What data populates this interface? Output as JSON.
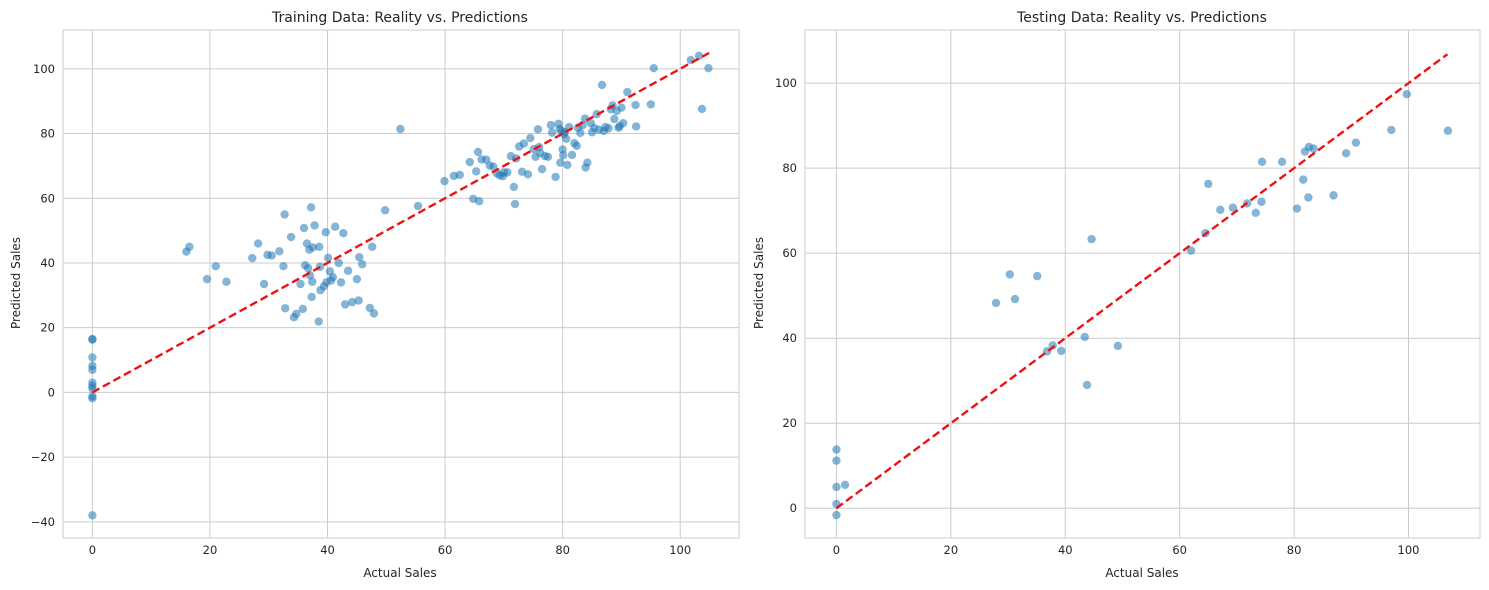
{
  "chart_data": [
    {
      "type": "scatter",
      "title": "Training Data: Reality vs. Predictions",
      "xlabel": "Actual Sales",
      "ylabel": "Predicted Sales",
      "xlim": [
        -5,
        110
      ],
      "ylim": [
        -45,
        112
      ],
      "xticks": [
        0,
        20,
        40,
        60,
        80,
        100
      ],
      "yticks": [
        -40,
        -20,
        0,
        20,
        40,
        60,
        80,
        100
      ],
      "grid": true,
      "point_color": "#1f77b4",
      "line_color": "#ee1111",
      "reference_line": {
        "x": [
          0,
          105
        ],
        "y": [
          0,
          105
        ]
      },
      "points": [
        [
          0,
          16.5
        ],
        [
          0,
          16.3
        ],
        [
          0,
          10.8
        ],
        [
          0,
          8.2
        ],
        [
          0,
          7.0
        ],
        [
          0,
          3.0
        ],
        [
          0,
          2.0
        ],
        [
          0,
          1.2
        ],
        [
          0,
          -1.2
        ],
        [
          0,
          -1.8
        ],
        [
          0,
          -38
        ],
        [
          16,
          43.5
        ],
        [
          16.5,
          45
        ],
        [
          19.5,
          35
        ],
        [
          21,
          39
        ],
        [
          22.8,
          34.2
        ],
        [
          27.2,
          41.5
        ],
        [
          28.2,
          46
        ],
        [
          29.2,
          33.5
        ],
        [
          29.8,
          42.5
        ],
        [
          30.5,
          42.3
        ],
        [
          31.8,
          43.6
        ],
        [
          32.5,
          39
        ],
        [
          32.7,
          55
        ],
        [
          32.8,
          26
        ],
        [
          33.8,
          48
        ],
        [
          34.3,
          23.2
        ],
        [
          34.7,
          24.3
        ],
        [
          35.4,
          33.5
        ],
        [
          35.8,
          25.8
        ],
        [
          36,
          50.8
        ],
        [
          36.2,
          39.3
        ],
        [
          36.5,
          46
        ],
        [
          36.7,
          38.4
        ],
        [
          36.9,
          44.1
        ],
        [
          37.0,
          36.2
        ],
        [
          37.2,
          57.2
        ],
        [
          37.3,
          29.5
        ],
        [
          37.4,
          34.2
        ],
        [
          37.5,
          44.8
        ],
        [
          37.8,
          51.6
        ],
        [
          38.5,
          21.9
        ],
        [
          38.6,
          45
        ],
        [
          38.7,
          38.8
        ],
        [
          38.8,
          31.6
        ],
        [
          39.4,
          32.8
        ],
        [
          39.7,
          49.5
        ],
        [
          39.8,
          34.0
        ],
        [
          40.1,
          41.6
        ],
        [
          40.4,
          37.4
        ],
        [
          40.6,
          34.6
        ],
        [
          40.9,
          35.6
        ],
        [
          41.3,
          51.2
        ],
        [
          41.9,
          40.0
        ],
        [
          42.3,
          34.0
        ],
        [
          42.7,
          49.2
        ],
        [
          43.0,
          27.2
        ],
        [
          43.5,
          37.6
        ],
        [
          44.2,
          27.9
        ],
        [
          45.0,
          35.0
        ],
        [
          45.3,
          28.4
        ],
        [
          45.4,
          41.8
        ],
        [
          45.9,
          39.6
        ],
        [
          47.2,
          26.1
        ],
        [
          47.6,
          45.0
        ],
        [
          47.9,
          24.4
        ],
        [
          49.8,
          56.3
        ],
        [
          52.4,
          81.4
        ],
        [
          55.4,
          57.6
        ],
        [
          59.9,
          65.3
        ],
        [
          61.5,
          66.9
        ],
        [
          62.5,
          67.2
        ],
        [
          64.2,
          71.2
        ],
        [
          64.8,
          59.8
        ],
        [
          65.3,
          68.3
        ],
        [
          65.6,
          74.3
        ],
        [
          65.8,
          59.1
        ],
        [
          66.2,
          72.0
        ],
        [
          67.0,
          71.9
        ],
        [
          67.6,
          70.1
        ],
        [
          68.2,
          69.8
        ],
        [
          68.8,
          67.7
        ],
        [
          69.3,
          67.1
        ],
        [
          69.8,
          66.8
        ],
        [
          70.0,
          68.0
        ],
        [
          70.6,
          68.0
        ],
        [
          71.2,
          73.0
        ],
        [
          71.7,
          63.5
        ],
        [
          71.9,
          58.2
        ],
        [
          72.1,
          72.3
        ],
        [
          72.6,
          76.0
        ],
        [
          73.1,
          68.2
        ],
        [
          73.4,
          76.9
        ],
        [
          74.1,
          67.4
        ],
        [
          74.5,
          78.6
        ],
        [
          75.1,
          75.2
        ],
        [
          75.4,
          72.8
        ],
        [
          75.8,
          81.3
        ],
        [
          76.0,
          75.8
        ],
        [
          76.2,
          74.0
        ],
        [
          76.5,
          69.0
        ],
        [
          77.0,
          73.0
        ],
        [
          77.5,
          72.8
        ],
        [
          78.0,
          82.6
        ],
        [
          78.2,
          80.3
        ],
        [
          78.8,
          66.6
        ],
        [
          79.3,
          83.0
        ],
        [
          79.5,
          81.4
        ],
        [
          79.6,
          71.0
        ],
        [
          79.8,
          80.8
        ],
        [
          80.0,
          75.1
        ],
        [
          80.1,
          73.3
        ],
        [
          80.2,
          79.8
        ],
        [
          80.4,
          80.5
        ],
        [
          80.6,
          78.4
        ],
        [
          80.8,
          70.3
        ],
        [
          81.1,
          82.0
        ],
        [
          81.6,
          73.4
        ],
        [
          82.0,
          77.0
        ],
        [
          82.4,
          76.2
        ],
        [
          82.6,
          81.8
        ],
        [
          83.0,
          80.2
        ],
        [
          83.4,
          82.6
        ],
        [
          83.8,
          84.6
        ],
        [
          83.9,
          69.5
        ],
        [
          84.2,
          71.0
        ],
        [
          84.8,
          83.2
        ],
        [
          85.0,
          80.4
        ],
        [
          85.4,
          81.7
        ],
        [
          85.8,
          86.0
        ],
        [
          86.2,
          81.2
        ],
        [
          86.7,
          95.0
        ],
        [
          87.0,
          80.8
        ],
        [
          87.3,
          82.0
        ],
        [
          87.8,
          81.6
        ],
        [
          88.2,
          87.5
        ],
        [
          88.5,
          88.7
        ],
        [
          88.8,
          84.5
        ],
        [
          89.2,
          87.0
        ],
        [
          89.5,
          81.8
        ],
        [
          89.7,
          82.3
        ],
        [
          90.0,
          88.0
        ],
        [
          90.3,
          83.2
        ],
        [
          91.0,
          92.8
        ],
        [
          92.4,
          88.8
        ],
        [
          92.5,
          82.2
        ],
        [
          95.0,
          89.0
        ],
        [
          95.5,
          100.2
        ],
        [
          101.8,
          102.7
        ],
        [
          103.2,
          104.0
        ],
        [
          103.7,
          87.6
        ],
        [
          104.8,
          100.2
        ]
      ]
    },
    {
      "type": "scatter",
      "title": "Testing Data: Reality vs. Predictions",
      "xlabel": "Actual Sales",
      "ylabel": "Predicted Sales",
      "xlim": [
        -5.5,
        112.5
      ],
      "ylim": [
        -7,
        112.5
      ],
      "xticks": [
        0,
        20,
        40,
        60,
        80,
        100
      ],
      "yticks": [
        0,
        20,
        40,
        60,
        80,
        100
      ],
      "grid": true,
      "point_color": "#1f77b4",
      "line_color": "#ee1111",
      "reference_line": {
        "x": [
          0,
          106.8
        ],
        "y": [
          0,
          106.8
        ]
      },
      "points": [
        [
          0,
          13.8
        ],
        [
          0,
          11.2
        ],
        [
          0,
          5.0
        ],
        [
          0,
          1.0
        ],
        [
          0,
          -1.6
        ],
        [
          1.5,
          5.5
        ],
        [
          27.9,
          48.3
        ],
        [
          30.3,
          55.0
        ],
        [
          31.2,
          49.2
        ],
        [
          35.1,
          54.6
        ],
        [
          36.8,
          36.9
        ],
        [
          37.8,
          38.3
        ],
        [
          39.3,
          37.0
        ],
        [
          43.4,
          40.3
        ],
        [
          43.8,
          29.0
        ],
        [
          44.6,
          63.3
        ],
        [
          49.2,
          38.2
        ],
        [
          62.0,
          60.6
        ],
        [
          64.5,
          64.7
        ],
        [
          65.0,
          76.3
        ],
        [
          67.1,
          70.2
        ],
        [
          69.3,
          70.7
        ],
        [
          71.8,
          71.7
        ],
        [
          73.3,
          69.5
        ],
        [
          74.3,
          72.1
        ],
        [
          74.4,
          81.5
        ],
        [
          77.9,
          81.5
        ],
        [
          80.5,
          70.5
        ],
        [
          81.6,
          77.3
        ],
        [
          81.9,
          83.9
        ],
        [
          82.5,
          73.1
        ],
        [
          82.6,
          85.0
        ],
        [
          83.4,
          84.6
        ],
        [
          86.9,
          73.6
        ],
        [
          89.1,
          83.5
        ],
        [
          90.8,
          86.0
        ],
        [
          97.0,
          89.0
        ],
        [
          99.7,
          97.4
        ],
        [
          106.9,
          88.8
        ]
      ]
    }
  ]
}
